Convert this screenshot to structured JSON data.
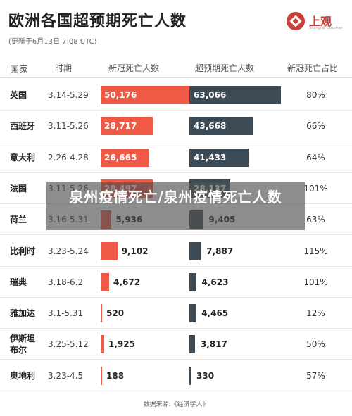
{
  "title": "欧洲各国超预期死亡人数",
  "subtitle": "(更新于6月13日 7:08 UTC)",
  "logo": {
    "name": "上观",
    "sub": "Shanghai Observer"
  },
  "headers": {
    "country": "国家",
    "period": "时期",
    "deaths": "新冠死亡人数",
    "excess": "超预期死亡人数",
    "ratio": "新冠死亡占比"
  },
  "source": "数据来源:《经济学人》",
  "overlay_text": "泉州疫情死亡/泉州疫情死亡人数",
  "colors": {
    "covid_deaths": "#ee5a45",
    "excess_deaths": "#3c4a55"
  },
  "chart_data": {
    "type": "table",
    "columns": [
      "国家",
      "时期",
      "新冠死亡人数",
      "超预期死亡人数",
      "新冠死亡占比"
    ],
    "rows": [
      {
        "country": "英国",
        "period": "3.14-5.29",
        "covid_deaths": 50176,
        "covid_label": "50,176",
        "excess_deaths": 63066,
        "excess_label": "63,066",
        "ratio": "80%"
      },
      {
        "country": "西班牙",
        "period": "3.11-5.26",
        "covid_deaths": 28717,
        "covid_label": "28,717",
        "excess_deaths": 43668,
        "excess_label": "43,668",
        "ratio": "66%"
      },
      {
        "country": "意大利",
        "period": "2.26-4.28",
        "covid_deaths": 26665,
        "covid_label": "26,665",
        "excess_deaths": 41433,
        "excess_label": "41,433",
        "ratio": "64%"
      },
      {
        "country": "法国",
        "period": "3.11-5.26",
        "covid_deaths": 28497,
        "covid_label": "28,497",
        "excess_deaths": 28137,
        "excess_label": "28,137",
        "ratio": "101%"
      },
      {
        "country": "荷兰",
        "period": "3.16-5.31",
        "covid_deaths": 5936,
        "covid_label": "5,936",
        "excess_deaths": 9405,
        "excess_label": "9,405",
        "ratio": "63%"
      },
      {
        "country": "比利时",
        "period": "3.23-5.24",
        "covid_deaths": 9102,
        "covid_label": "9,102",
        "excess_deaths": 7887,
        "excess_label": "7,887",
        "ratio": "115%"
      },
      {
        "country": "瑞典",
        "period": "3.18-6.2",
        "covid_deaths": 4672,
        "covid_label": "4,672",
        "excess_deaths": 4623,
        "excess_label": "4,623",
        "ratio": "101%"
      },
      {
        "country": "雅加达",
        "period": "3.1-5.31",
        "covid_deaths": 520,
        "covid_label": "520",
        "excess_deaths": 4465,
        "excess_label": "4,465",
        "ratio": "12%"
      },
      {
        "country": "伊斯坦布尔",
        "period": "3.25-5.12",
        "covid_deaths": 1925,
        "covid_label": "1,925",
        "excess_deaths": 3817,
        "excess_label": "3,817",
        "ratio": "50%"
      },
      {
        "country": "奥地利",
        "period": "3.23-4.5",
        "covid_deaths": 188,
        "covid_label": "188",
        "excess_deaths": 330,
        "excess_label": "330",
        "ratio": "57%"
      }
    ]
  }
}
